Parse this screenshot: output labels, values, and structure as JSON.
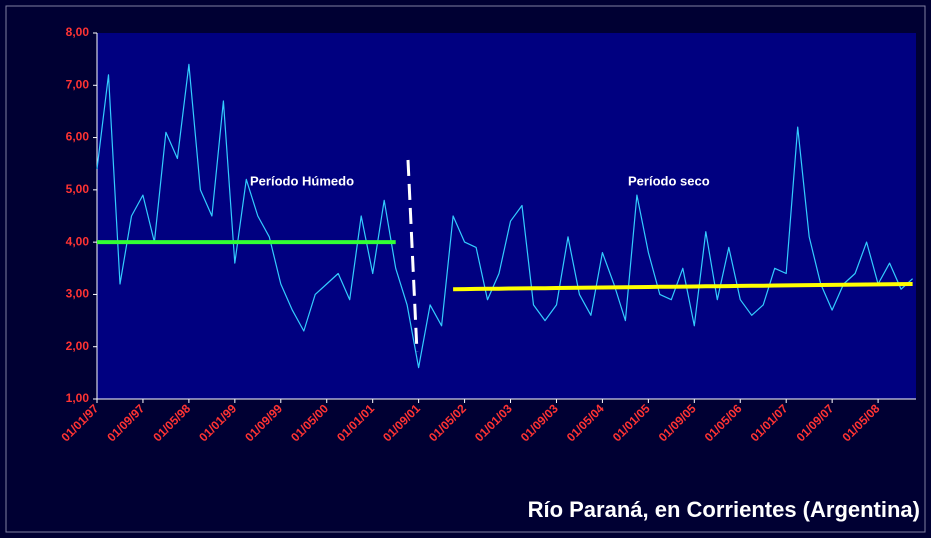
{
  "chart_data": {
    "type": "line",
    "title": "Río Paraná, en Corrientes (Argentina)",
    "annotations": [
      "Período Húmedo",
      "Período seco"
    ],
    "categories": [
      "01/01/97",
      null,
      null,
      null,
      "01/09/97",
      null,
      null,
      null,
      "01/05/98",
      null,
      null,
      null,
      "01/01/99",
      null,
      null,
      null,
      "01/09/99",
      null,
      null,
      null,
      "01/05/00",
      null,
      null,
      null,
      "01/01/01",
      null,
      null,
      null,
      "01/09/01",
      null,
      null,
      null,
      "01/05/02",
      null,
      null,
      null,
      "01/01/03",
      null,
      null,
      null,
      "01/09/03",
      null,
      null,
      null,
      "01/05/04",
      null,
      null,
      null,
      "01/01/05",
      null,
      null,
      null,
      "01/09/05",
      null,
      null,
      null,
      "01/05/06",
      null,
      null,
      null,
      "01/01/07",
      null,
      null,
      null,
      "01/09/07",
      null,
      null,
      null,
      "01/05/08",
      null,
      null,
      null
    ],
    "series": [
      {
        "color": "#33ccff",
        "values": [
          5.4,
          7.2,
          3.2,
          4.5,
          4.9,
          4.0,
          6.1,
          5.6,
          7.4,
          5.0,
          4.5,
          6.7,
          3.6,
          5.2,
          4.5,
          4.1,
          3.2,
          2.7,
          2.3,
          3.0,
          3.2,
          3.4,
          2.9,
          4.5,
          3.4,
          4.8,
          3.5,
          2.8,
          1.6,
          2.8,
          2.4,
          4.5,
          4.0,
          3.9,
          2.9,
          3.4,
          4.4,
          4.7,
          2.8,
          2.5,
          2.8,
          4.1,
          3.0,
          2.6,
          3.8,
          3.2,
          2.5,
          4.9,
          3.8,
          3.0,
          2.9,
          3.5,
          2.4,
          4.2,
          2.9,
          3.9,
          2.9,
          2.6,
          2.8,
          3.5,
          3.4,
          6.2,
          4.1,
          3.2,
          2.7,
          3.2,
          3.4,
          4.0,
          3.2,
          3.6,
          3.1,
          3.3
        ]
      },
      {
        "color": "#33ff33",
        "values": [
          4.0,
          4.0,
          4.0,
          4.0,
          4.0,
          4.0,
          4.0,
          4.0,
          4.0,
          4.0,
          4.0,
          4.0,
          4.0,
          4.0,
          4.0,
          4.0,
          4.0,
          4.0,
          4.0,
          4.0,
          4.0,
          4.0,
          4.0,
          4.0,
          4.0,
          4.0,
          4.0,
          null,
          null,
          null,
          null,
          null,
          null,
          null,
          null,
          null,
          null,
          null,
          null,
          null,
          null,
          null,
          null,
          null,
          null,
          null,
          null,
          null,
          null,
          null,
          null,
          null,
          null,
          null,
          null,
          null,
          null,
          null,
          null,
          null,
          null,
          null,
          null,
          null,
          null,
          null,
          null,
          null,
          null,
          null,
          null,
          null
        ]
      },
      {
        "color": "#ffff00",
        "values": [
          null,
          null,
          null,
          null,
          null,
          null,
          null,
          null,
          null,
          null,
          null,
          null,
          null,
          null,
          null,
          null,
          null,
          null,
          null,
          null,
          null,
          null,
          null,
          null,
          null,
          null,
          null,
          null,
          null,
          null,
          null,
          3.1,
          3.1025,
          3.105,
          3.1075,
          3.11,
          3.1125,
          3.115,
          3.1175,
          3.12,
          3.1225,
          3.125,
          3.1275,
          3.13,
          3.1325,
          3.135,
          3.1375,
          3.14,
          3.1425,
          3.145,
          3.1475,
          3.15,
          3.1525,
          3.155,
          3.1575,
          3.16,
          3.1625,
          3.165,
          3.1675,
          3.17,
          3.1725,
          3.175,
          3.1775,
          3.18,
          3.1825,
          3.185,
          3.1875,
          3.19,
          3.1925,
          3.195,
          3.1975,
          3.2
        ]
      }
    ],
    "ylim": [
      1,
      8
    ],
    "yticks": [
      {
        "value": 1,
        "label": "1,00"
      },
      {
        "value": 2,
        "label": "2,00"
      },
      {
        "value": 3,
        "label": "3,00"
      },
      {
        "value": 4,
        "label": "4,00"
      },
      {
        "value": 5,
        "label": "5,00"
      },
      {
        "value": 6,
        "label": "6,00"
      },
      {
        "value": 7,
        "label": "7,00"
      },
      {
        "value": 8,
        "label": "8,00"
      }
    ],
    "tick_color": "#ff3333"
  }
}
